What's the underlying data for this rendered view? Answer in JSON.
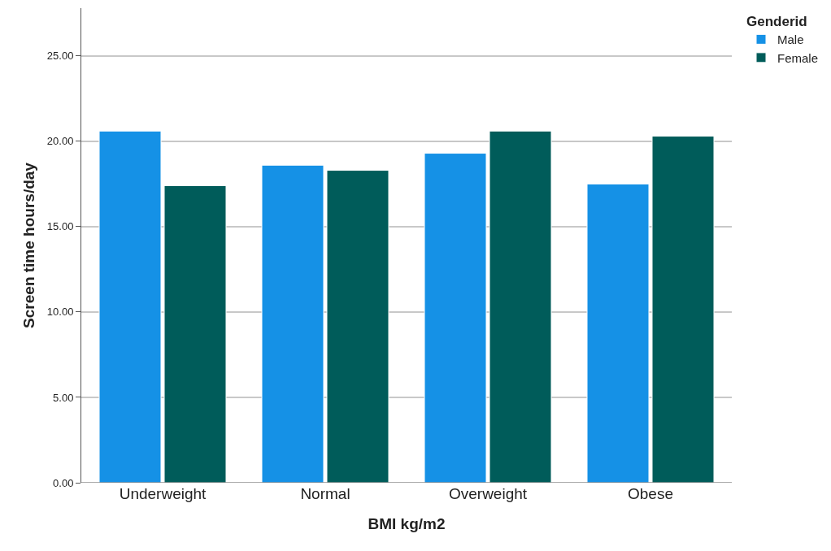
{
  "chart_data": {
    "type": "bar",
    "xlabel": "BMI kg/m2",
    "ylabel": "Screen time hours/day",
    "legend_title": "Genderid",
    "categories": [
      "Underweight",
      "Normal",
      "Overweight",
      "Obese"
    ],
    "series": [
      {
        "name": "Male",
        "color": "#1591e6",
        "values": [
          20.6,
          18.6,
          19.3,
          17.5
        ]
      },
      {
        "name": "Female",
        "color": "#005c5a",
        "values": [
          17.4,
          18.3,
          20.6,
          20.3
        ]
      }
    ],
    "ylim": [
      0,
      27.8
    ],
    "yticks": [
      {
        "value": 0,
        "label": "0.00"
      },
      {
        "value": 5,
        "label": "5.00"
      },
      {
        "value": 10,
        "label": "10.00"
      },
      {
        "value": 15,
        "label": "15.00"
      },
      {
        "value": 20,
        "label": "20.00"
      },
      {
        "value": 25,
        "label": "25.00"
      }
    ],
    "grid": "y",
    "legend": "top right"
  }
}
